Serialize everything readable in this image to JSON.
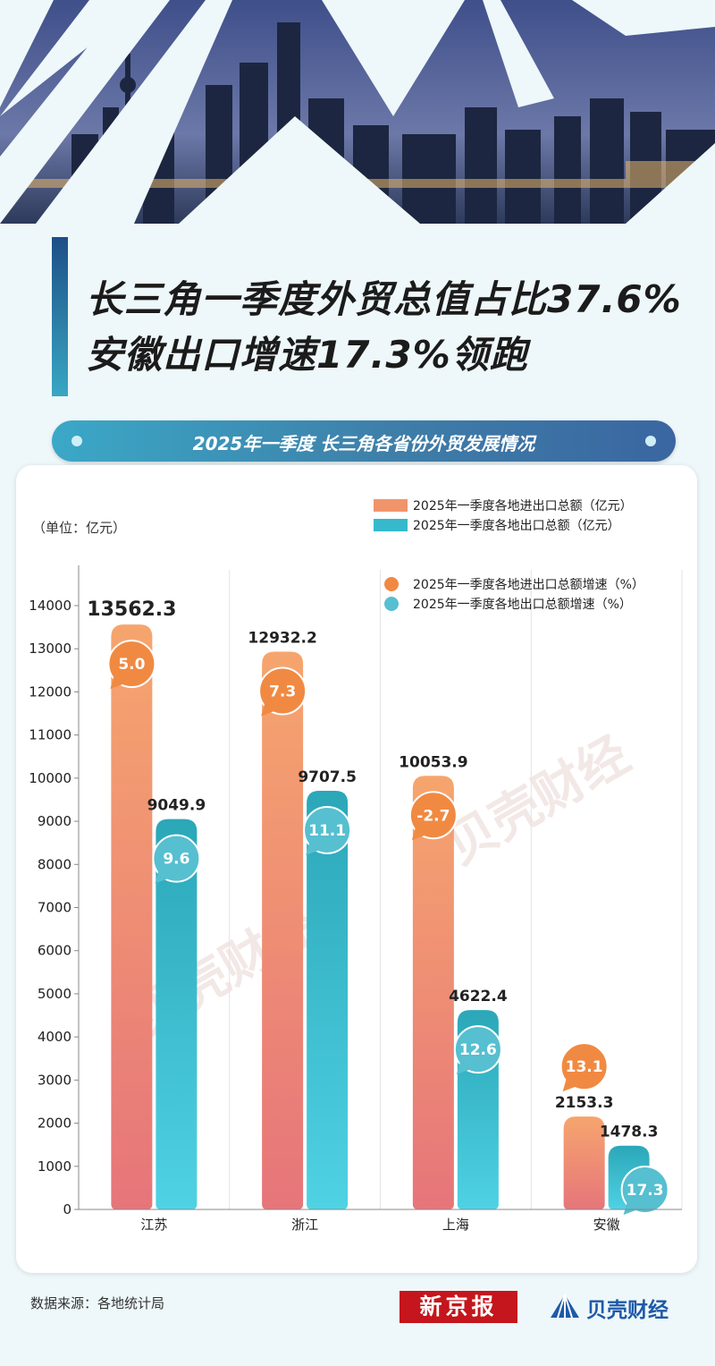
{
  "header": {
    "title_line1": "长三角一季度外贸总值占比37.6%",
    "title_line2": "安徽出口增速17.3%领跑",
    "subtitle": "2025年一季度 长三角各省份外贸发展情况"
  },
  "colors": {
    "import_export": "#f0946b",
    "export": "#35b9cb",
    "growth_ie": "#f08a43",
    "growth_ex": "#56bfd0"
  },
  "chart_data": {
    "type": "bar",
    "unit_label": "（单位：亿元）",
    "categories": [
      "江苏",
      "浙江",
      "上海",
      "安徽"
    ],
    "series": [
      {
        "name": "2025年一季度各地进出口总额（亿元）",
        "values": [
          13562.3,
          12932.2,
          10053.9,
          2153.3
        ]
      },
      {
        "name": "2025年一季度各地出口总额（亿元）",
        "values": [
          9049.9,
          9707.5,
          4622.4,
          1478.3
        ]
      }
    ],
    "growth_series": [
      {
        "name": "2025年一季度各地进出口总额增速（%）",
        "values": [
          "5.0",
          "7.3",
          "-2.7",
          "13.1"
        ]
      },
      {
        "name": "2025年一季度各地出口总额增速（%）",
        "values": [
          "9.6",
          "11.1",
          "12.6",
          "17.3"
        ]
      }
    ],
    "value_labels": [
      [
        "13562.3",
        "9049.9"
      ],
      [
        "12932.2",
        "9707.5"
      ],
      [
        "10053.9",
        "4622.4"
      ],
      [
        "2153.3",
        "1478.3"
      ]
    ],
    "yticks": [
      "0",
      "1000",
      "2000",
      "3000",
      "4000",
      "5000",
      "6000",
      "7000",
      "8000",
      "9000",
      "10000",
      "11000",
      "12000",
      "13000",
      "14000"
    ],
    "ylim": [
      0,
      14000
    ],
    "grid": "vertical separators",
    "legend_position": "top-right"
  },
  "watermark": "贝壳财经",
  "footer": {
    "source": "数据来源：各地统计局",
    "logo_xjb": "新京报",
    "logo_bk": "贝壳财经"
  }
}
